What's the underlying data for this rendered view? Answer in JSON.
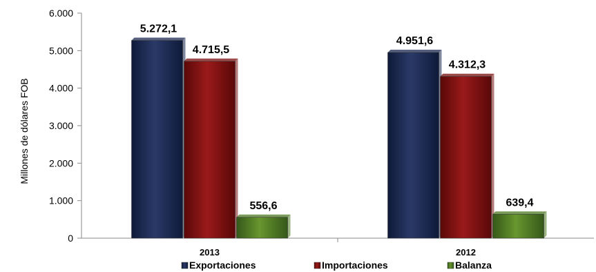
{
  "chart_data": {
    "type": "bar",
    "title": "",
    "xlabel": "",
    "ylabel": "Millones de dólares FOB",
    "categories": [
      "2013",
      "2012"
    ],
    "series": [
      {
        "name": "Exportaciones",
        "values": [
          5272.1,
          4951.6
        ],
        "labels": [
          "5.272,1",
          "4.951,6"
        ],
        "color": "#1c2a52"
      },
      {
        "name": "Importaciones",
        "values": [
          4715.5,
          4312.3
        ],
        "labels": [
          "4.715,5",
          "4.312,3"
        ],
        "color": "#7a0e0e"
      },
      {
        "name": "Balanza",
        "values": [
          556.6,
          639.4
        ],
        "labels": [
          "556,6",
          "639,4"
        ],
        "color": "#4e7a22"
      }
    ],
    "ylim": [
      0,
      6000
    ],
    "yticks": [
      0,
      1000,
      2000,
      3000,
      4000,
      5000,
      6000
    ],
    "ytick_labels": [
      "0",
      "1.000",
      "2.000",
      "3.000",
      "4.000",
      "5.000",
      "6.000"
    ],
    "grid": false,
    "legend_position": "bottom"
  }
}
